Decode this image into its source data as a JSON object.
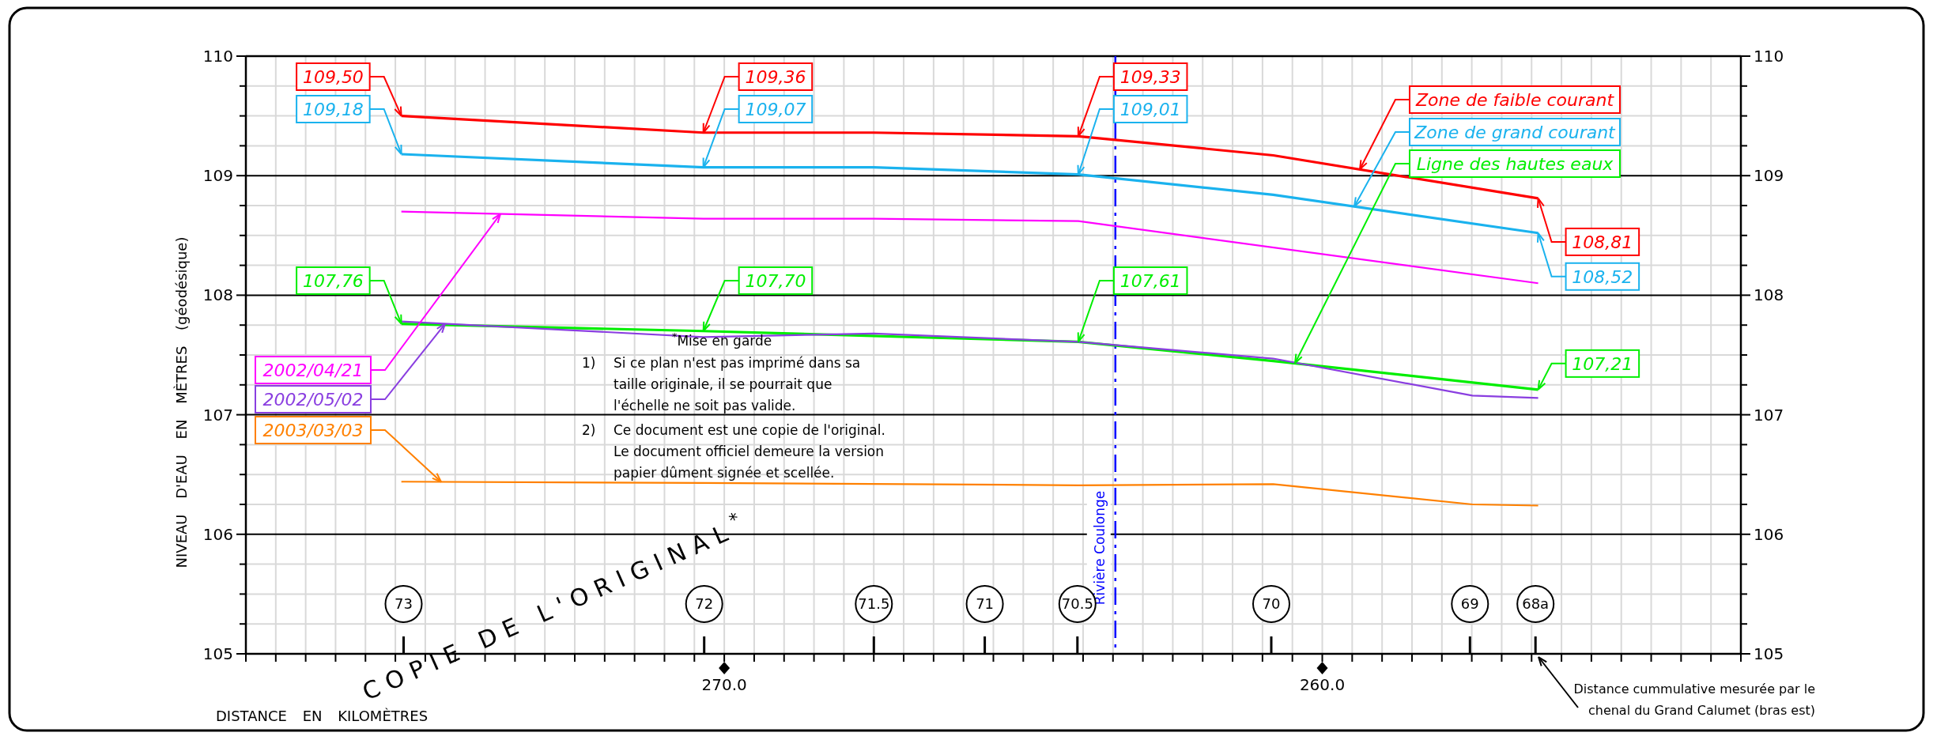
{
  "chart_data": {
    "type": "line",
    "xlabel": "DISTANCE EN KILOMÈTRES",
    "ylabel": "NIVEAU D'EAU EN MÈTRES (géodésique)",
    "xlim": [
      278,
      253
    ],
    "ylim": [
      105,
      110
    ],
    "y2lim": [
      105,
      110
    ],
    "xticks": [
      {
        "value": 278,
        "label": null
      },
      {
        "value": 277.5,
        "label": null
      },
      {
        "value": 277,
        "label": null
      },
      {
        "value": 276.5,
        "label": null
      },
      {
        "value": 276,
        "label": null
      },
      {
        "value": 275.5,
        "label": null
      },
      {
        "value": 275,
        "label": null
      },
      {
        "value": 274.5,
        "label": null
      },
      {
        "value": 274,
        "label": null
      },
      {
        "value": 273.5,
        "label": null
      },
      {
        "value": 273,
        "label": null
      },
      {
        "value": 272.5,
        "label": null
      },
      {
        "value": 272,
        "label": null
      },
      {
        "value": 271.5,
        "label": null
      },
      {
        "value": 271,
        "label": null
      },
      {
        "value": 270.5,
        "label": null
      },
      {
        "value": 270,
        "label": "270.0"
      },
      {
        "value": 269.5,
        "label": null
      },
      {
        "value": 269,
        "label": null
      },
      {
        "value": 268.5,
        "label": null
      },
      {
        "value": 268,
        "label": null
      },
      {
        "value": 267.5,
        "label": null
      },
      {
        "value": 267,
        "label": null
      },
      {
        "value": 266.5,
        "label": null
      },
      {
        "value": 266,
        "label": null
      },
      {
        "value": 265.5,
        "label": null
      },
      {
        "value": 265,
        "label": null
      },
      {
        "value": 264.5,
        "label": null
      },
      {
        "value": 264,
        "label": null
      },
      {
        "value": 263.5,
        "label": null
      },
      {
        "value": 263,
        "label": null
      },
      {
        "value": 262.5,
        "label": null
      },
      {
        "value": 262,
        "label": null
      },
      {
        "value": 261.5,
        "label": null
      },
      {
        "value": 261,
        "label": null
      },
      {
        "value": 260.5,
        "label": null
      },
      {
        "value": 260,
        "label": "260.0"
      },
      {
        "value": 259.5,
        "label": null
      },
      {
        "value": 259,
        "label": null
      },
      {
        "value": 258.5,
        "label": null
      },
      {
        "value": 258,
        "label": null
      },
      {
        "value": 257.5,
        "label": null
      },
      {
        "value": 257,
        "label": null
      },
      {
        "value": 256.5,
        "label": null
      },
      {
        "value": 256,
        "label": null
      },
      {
        "value": 255.5,
        "label": null
      },
      {
        "value": 255,
        "label": null
      },
      {
        "value": 254.5,
        "label": null
      },
      {
        "value": 254,
        "label": null
      },
      {
        "value": 253.5,
        "label": null
      },
      {
        "value": 253,
        "label": null
      }
    ],
    "yticks": [
      105,
      {
        "value": 105.25,
        "label": null
      },
      {
        "value": 105.5,
        "label": null
      },
      {
        "value": 105.75,
        "label": null
      },
      106,
      {
        "value": 106.25,
        "label": null
      },
      {
        "value": 106.5,
        "label": null
      },
      {
        "value": 106.75,
        "label": null
      },
      107,
      {
        "value": 107.25,
        "label": null
      },
      {
        "value": 107.5,
        "label": null
      },
      {
        "value": 107.75,
        "label": null
      },
      108,
      {
        "value": 108.25,
        "label": null
      },
      {
        "value": 108.5,
        "label": null
      },
      {
        "value": 108.75,
        "label": null
      },
      109,
      {
        "value": 109.25,
        "label": null
      },
      {
        "value": 109.5,
        "label": null
      },
      {
        "value": 109.75,
        "label": null
      },
      110
    ],
    "y2ticks": [
      105,
      {
        "value": 105.25,
        "label": null
      },
      {
        "value": 105.5,
        "label": null
      },
      {
        "value": 105.75,
        "label": null
      },
      106,
      {
        "value": 106.25,
        "label": null
      },
      {
        "value": 106.5,
        "label": null
      },
      {
        "value": 106.75,
        "label": null
      },
      107,
      {
        "value": 107.25,
        "label": null
      },
      {
        "value": 107.5,
        "label": null
      },
      {
        "value": 107.75,
        "label": null
      },
      108,
      {
        "value": 108.25,
        "label": null
      },
      {
        "value": 108.5,
        "label": null
      },
      {
        "value": 108.75,
        "label": null
      },
      109,
      {
        "value": 109.25,
        "label": null
      },
      {
        "value": 109.5,
        "label": null
      },
      {
        "value": 109.75,
        "label": null
      },
      110
    ],
    "grid": true,
    "series": [
      {
        "name": "Zone de faible courant",
        "color": "#ff0000",
        "x": [
          275.4,
          270.35,
          267.5,
          264.08,
          260.82,
          256.39
        ],
        "values": [
          109.5,
          109.36,
          109.36,
          109.33,
          109.17,
          108.81
        ],
        "value_labels": [
          "109,50",
          "109,36",
          null,
          "109,33",
          null,
          "108,81"
        ]
      },
      {
        "name": "Zone de grand courant",
        "color": "#1ab2ee",
        "x": [
          275.4,
          270.35,
          267.5,
          264.08,
          260.82,
          256.39
        ],
        "values": [
          109.18,
          109.07,
          109.07,
          109.01,
          108.84,
          108.52
        ],
        "value_labels": [
          "109,18",
          "109,07",
          null,
          "109,01",
          null,
          "108,52"
        ]
      },
      {
        "name": "Ligne des hautes eaux",
        "color": "#00ee00",
        "x": [
          275.4,
          270.35,
          264.08,
          260.82,
          256.39
        ],
        "values": [
          107.76,
          107.7,
          107.61,
          107.45,
          107.21
        ],
        "value_labels": [
          "107,76",
          "107,70",
          "107,61",
          null,
          "107,21"
        ]
      },
      {
        "name": "2002/04/21",
        "color": "#ff00ff",
        "x": [
          275.4,
          270.35,
          267.5,
          264.08,
          256.39
        ],
        "values": [
          108.7,
          108.64,
          108.64,
          108.62,
          108.1
        ]
      },
      {
        "name": "2002/05/02",
        "color": "#8a3ee0",
        "x": [
          275.4,
          270.35,
          267.5,
          264.08,
          260.82,
          257.49,
          256.39
        ],
        "values": [
          107.78,
          107.65,
          107.68,
          107.61,
          107.47,
          107.16,
          107.14
        ]
      },
      {
        "name": "2003/03/03",
        "color": "#ff8000",
        "x": [
          275.4,
          270.35,
          264.08,
          260.82,
          257.49,
          256.39
        ],
        "values": [
          106.44,
          106.43,
          106.41,
          106.42,
          106.25,
          106.24
        ]
      }
    ],
    "ref_lines": [
      {
        "axis": "x",
        "value": 263.46,
        "label": "Rivière Coulonge",
        "color": "#0000ff",
        "line_style": "dashed"
      }
    ],
    "annotations": [
      "$^{*}$Mise en garde",
      "1)  Si ce plan n'est pas imprimé dans sa taille originale, il se pourrait que l'échelle ne soit pas valide.",
      "2)  Ce document est une copie de l'original. Le document officiel demeure la version papier dûment signée et scellée.",
      "COPIE DE L'ORIGINAL$^{*}$",
      "Distance cummulative mesurée par le chenal du Grand Calumet (bras est)",
      "73",
      "72",
      "71.5",
      "71",
      "70.5",
      "70",
      "69",
      "68a"
    ]
  }
}
